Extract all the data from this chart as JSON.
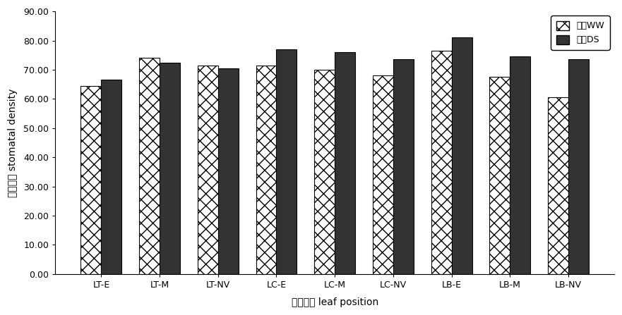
{
  "categories": [
    "LT-E",
    "LT-M",
    "LT-NV",
    "LC-E",
    "LC-M",
    "LC-NV",
    "LB-E",
    "LB-M",
    "LB-NV"
  ],
  "ww_values": [
    64.5,
    74.0,
    71.5,
    71.5,
    70.0,
    68.0,
    76.5,
    67.5,
    60.5
  ],
  "ds_values": [
    66.5,
    72.5,
    70.5,
    77.0,
    76.0,
    73.5,
    81.0,
    74.5,
    73.5
  ],
  "ylabel": "气孔密度 stomatal density",
  "xlabel": "叶片部位 leaf position",
  "legend_ww": "水地WW",
  "legend_ds": "旱地DS",
  "ylim": [
    0,
    90
  ],
  "yticks": [
    0,
    10,
    20,
    30,
    40,
    50,
    60,
    70,
    80,
    90
  ],
  "ytick_labels": [
    "0.00",
    "10.00",
    "20.00",
    "30.00",
    "40.00",
    "50.00",
    "60.00",
    "70.00",
    "80.00",
    "90.00"
  ],
  "bar_width": 0.35,
  "figsize": [
    8.81,
    4.47
  ],
  "dpi": 100
}
